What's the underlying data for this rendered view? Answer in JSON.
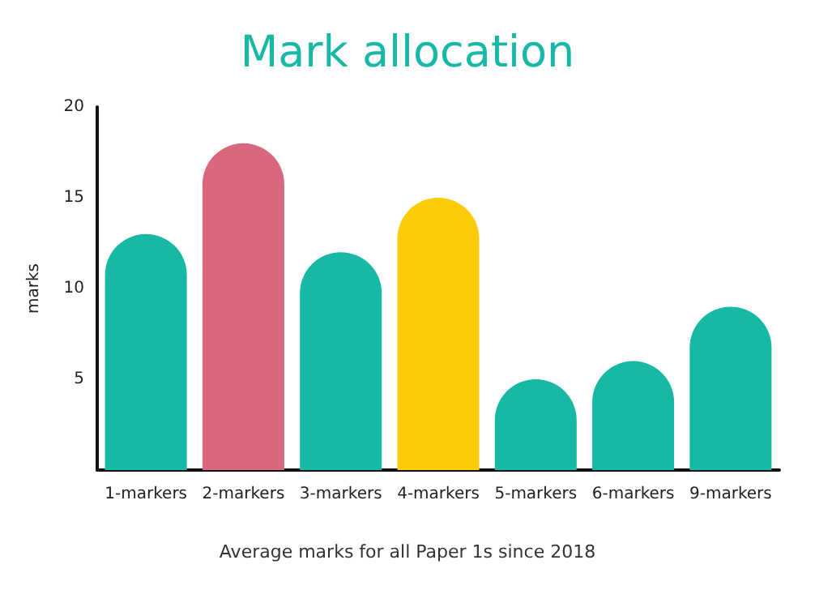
{
  "chart_data": {
    "type": "bar",
    "title": "Mark allocation",
    "ylabel": "marks",
    "categories": [
      "1-markers",
      "2-markers",
      "3-markers",
      "4-markers",
      "5-markers",
      "6-markers",
      "9-markers"
    ],
    "values": [
      13,
      18,
      12,
      15,
      5,
      6,
      9
    ],
    "colors": [
      "#17b8a6",
      "#d9677d",
      "#17b8a6",
      "#fccc06",
      "#17b8a6",
      "#17b8a6",
      "#17b8a6"
    ],
    "ylim": [
      0,
      20
    ],
    "yticks": [
      5,
      10,
      15,
      20
    ],
    "grid": false,
    "annotations": [
      "Average marks for all Paper 1s since 2018"
    ]
  }
}
